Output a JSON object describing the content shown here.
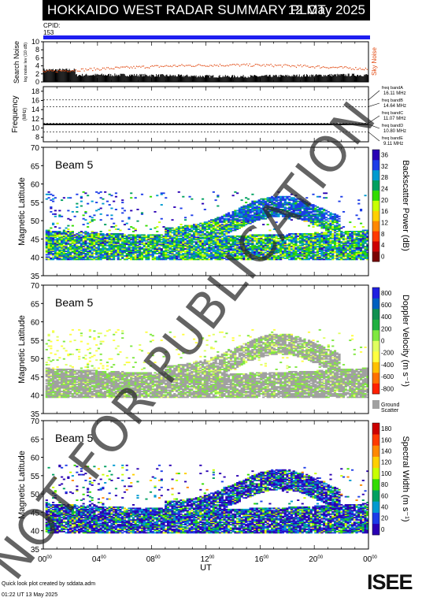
{
  "header": {
    "title": "HOKKAIDO WEST RADAR SUMMARY PLOT",
    "date": "12 May 2025"
  },
  "cpid": {
    "label": "CPID:",
    "value": "153"
  },
  "noise_panel": {
    "ylabel": "Search Noise",
    "ylabel_sub": "log noise lev (10 dB)",
    "right_label": "Sky Noise",
    "ticks": [
      "0",
      "2",
      "4",
      "6",
      "8",
      "10"
    ]
  },
  "freq_panel": {
    "ylabel": "Frequency",
    "ylabel_unit": "(MHz)",
    "ticks": [
      "8",
      "10",
      "12",
      "14",
      "16",
      "18"
    ],
    "bands": [
      {
        "name": "freq bandA",
        "freq": "16.11 MHz",
        "value": 16.11
      },
      {
        "name": "freq bandB",
        "freq": "14.64 MHz",
        "value": 14.64
      },
      {
        "name": "freq bandC",
        "freq": "11.07 MHz",
        "value": 11.07
      },
      {
        "name": "freq bandD",
        "freq": "10.80 MHz",
        "value": 10.8
      },
      {
        "name": "freq bandE",
        "freq": "9.11 MHz",
        "value": 9.11
      }
    ],
    "operating_mhz": 10.8
  },
  "panels": [
    {
      "id": "power",
      "beam": "Beam  5",
      "ylabel": "Magnetic Latitude",
      "cbar_label": "Backscatter Power (dB)",
      "cbar_ticks": [
        "0",
        "4",
        "8",
        "12",
        "16",
        "20",
        "24",
        "28",
        "32",
        "36"
      ],
      "colors": [
        "#7a0000",
        "#cc0000",
        "#ff3a00",
        "#ff8800",
        "#ffd000",
        "#c8ff00",
        "#32dc00",
        "#00a060",
        "#009ad0",
        "#1c3ce8",
        "#2a00b4"
      ]
    },
    {
      "id": "velocity",
      "beam": "Beam  5",
      "ylabel": "Magnetic Latitude",
      "cbar_label": "Doppler Velocity (m s⁻¹)",
      "cbar_ticks": [
        "-800",
        "-600",
        "-400",
        "-200",
        "0",
        "200",
        "400",
        "600",
        "800"
      ],
      "gs_label": "Ground",
      "gs_label2": "Scatter",
      "colors": [
        "#ff2000",
        "#ff7000",
        "#ffc000",
        "#ffff40",
        "#e0ff60",
        "#80e840",
        "#20b040",
        "#109050",
        "#0060c0",
        "#2020e0"
      ]
    },
    {
      "id": "width",
      "beam": "Beam  5",
      "ylabel": "Magnetic Latitude",
      "cbar_label": "Spectral Width (m s⁻¹)",
      "cbar_ticks": [
        "0",
        "20",
        "40",
        "60",
        "80",
        "100",
        "120",
        "140",
        "160",
        "180"
      ],
      "colors": [
        "#2a00b4",
        "#1c3ce8",
        "#009ad0",
        "#00a060",
        "#32dc00",
        "#c8ff00",
        "#ffd000",
        "#ff8800",
        "#ff3a00",
        "#cc0000"
      ]
    }
  ],
  "lat_ticks": [
    "35",
    "40",
    "45",
    "50",
    "55",
    "60",
    "65",
    "70"
  ],
  "x_axis": {
    "label": "UT",
    "ticks": [
      {
        "h": "00",
        "m": "00"
      },
      {
        "h": "04",
        "m": "00"
      },
      {
        "h": "08",
        "m": "00"
      },
      {
        "h": "12",
        "m": "00"
      },
      {
        "h": "16",
        "m": "00"
      },
      {
        "h": "20",
        "m": "00"
      },
      {
        "h": "00",
        "m": "00"
      }
    ]
  },
  "watermark": "NOT FOR PUBLICATION",
  "footer": {
    "line1": "Quick look plot created by sddata.adm",
    "line2": "01:22 UT 13 May 2025",
    "logo": "ISEE"
  },
  "chart_data": {
    "type": "heatmap",
    "title": "HOKKAIDO WEST RADAR SUMMARY PLOT",
    "xlabel": "UT",
    "xlim_hours": [
      0,
      24
    ],
    "ylim_latitude": [
      35,
      70
    ],
    "series": [
      {
        "name": "Backscatter Power (dB)",
        "range": [
          0,
          36
        ]
      },
      {
        "name": "Doppler Velocity (m s⁻¹)",
        "range": [
          -800,
          800
        ]
      },
      {
        "name": "Spectral Width (m s⁻¹)",
        "range": [
          0,
          180
        ]
      }
    ],
    "echo_regions": [
      {
        "t_start": 0.2,
        "t_end": 24,
        "lat_low": 39,
        "lat_high": 47,
        "type": "ionospheric"
      },
      {
        "t_start": 11,
        "t_end": 21,
        "lat_low": 45,
        "lat_high": 55,
        "type": "ionospheric"
      },
      {
        "t_start": 0.5,
        "t_end": 24,
        "lat_low": 40,
        "lat_high": 58,
        "type": "sparse"
      }
    ]
  }
}
